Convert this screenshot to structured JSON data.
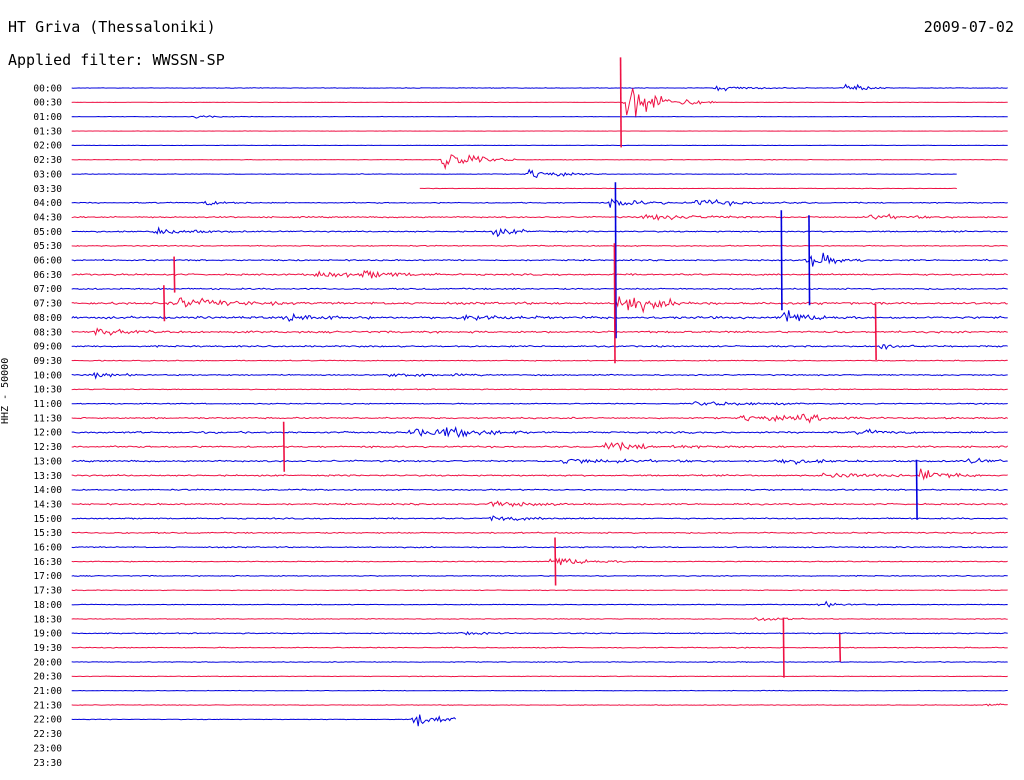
{
  "header": {
    "station": "HT Griva (Thessaloniki)",
    "date": "2009-07-02",
    "filter": "Applied filter: WWSSN-SP"
  },
  "chart_data": {
    "type": "line",
    "title": "HT Griva (Thessaloniki)",
    "subtitle": "Applied filter: WWSSN-SP",
    "ylabel": "HHZ - 50000",
    "xlabel": "",
    "grid": false,
    "colors": [
      "#0000dd",
      "#ee1144"
    ],
    "rows": [
      "00:00",
      "00:30",
      "01:00",
      "01:30",
      "02:00",
      "02:30",
      "03:00",
      "03:30",
      "04:00",
      "04:30",
      "05:00",
      "05:30",
      "06:00",
      "06:30",
      "07:00",
      "07:30",
      "08:00",
      "08:30",
      "09:00",
      "09:30",
      "10:00",
      "10:30",
      "11:00",
      "11:30",
      "12:00",
      "12:30",
      "13:00",
      "13:30",
      "14:00",
      "14:30",
      "15:00",
      "15:30",
      "16:00",
      "16:30",
      "17:00",
      "17:30",
      "18:00",
      "18:30",
      "19:00",
      "19:30",
      "20:00",
      "20:30",
      "21:00",
      "21:30",
      "22:00",
      "22:30",
      "23:00",
      "23:30"
    ],
    "row_noise": [
      0.35,
      0.2,
      0.3,
      0.15,
      0.2,
      0.4,
      0.4,
      0.3,
      0.7,
      0.9,
      0.9,
      0.7,
      0.9,
      1.1,
      1.0,
      1.5,
      1.5,
      1.3,
      1.0,
      0.6,
      0.8,
      0.6,
      0.7,
      1.0,
      1.2,
      1.1,
      1.1,
      1.0,
      0.9,
      1.0,
      0.9,
      0.9,
      0.8,
      0.6,
      0.6,
      0.5,
      0.5,
      0.5,
      0.7,
      0.6,
      0.5,
      0.4,
      0.4,
      0.4,
      0.4,
      0,
      0,
      0
    ],
    "row_extent": [
      [
        0.07,
        0.985
      ],
      [
        0.07,
        0.985
      ],
      [
        0.07,
        0.985
      ],
      [
        0.07,
        0.985
      ],
      [
        0.07,
        0.985
      ],
      [
        0.07,
        0.985
      ],
      [
        0.07,
        0.935
      ],
      [
        0.41,
        0.935
      ],
      [
        0.07,
        0.985
      ],
      [
        0.07,
        0.985
      ],
      [
        0.07,
        0.985
      ],
      [
        0.07,
        0.985
      ],
      [
        0.07,
        0.985
      ],
      [
        0.07,
        0.985
      ],
      [
        0.07,
        0.985
      ],
      [
        0.07,
        0.985
      ],
      [
        0.07,
        0.985
      ],
      [
        0.07,
        0.985
      ],
      [
        0.07,
        0.985
      ],
      [
        0.07,
        0.985
      ],
      [
        0.07,
        0.985
      ],
      [
        0.07,
        0.985
      ],
      [
        0.07,
        0.985
      ],
      [
        0.07,
        0.985
      ],
      [
        0.07,
        0.985
      ],
      [
        0.07,
        0.985
      ],
      [
        0.07,
        0.985
      ],
      [
        0.07,
        0.985
      ],
      [
        0.07,
        0.985
      ],
      [
        0.07,
        0.985
      ],
      [
        0.07,
        0.985
      ],
      [
        0.07,
        0.985
      ],
      [
        0.07,
        0.985
      ],
      [
        0.07,
        0.985
      ],
      [
        0.07,
        0.985
      ],
      [
        0.07,
        0.985
      ],
      [
        0.07,
        0.985
      ],
      [
        0.07,
        0.985
      ],
      [
        0.07,
        0.985
      ],
      [
        0.07,
        0.985
      ],
      [
        0.07,
        0.985
      ],
      [
        0.07,
        0.985
      ],
      [
        0.07,
        0.985
      ],
      [
        0.07,
        0.985
      ],
      [
        0.07,
        0.445
      ],
      [
        0,
        0
      ],
      [
        0,
        0
      ],
      [
        0,
        0
      ]
    ],
    "events": [
      {
        "row": 0,
        "t": 0.7,
        "amp": 4,
        "dur": 0.03
      },
      {
        "row": 0,
        "t": 0.825,
        "amp": 9,
        "dur": 0.015
      },
      {
        "row": 1,
        "t": 0.612,
        "amp": 28,
        "dur": 0.03
      },
      {
        "row": 2,
        "t": 0.19,
        "amp": 2,
        "dur": 0.02
      },
      {
        "row": 5,
        "t": 0.43,
        "amp": 20,
        "dur": 0.025
      },
      {
        "row": 5,
        "t": 0.995,
        "amp": 4,
        "dur": 0.03
      },
      {
        "row": 6,
        "t": 0.517,
        "amp": 9,
        "dur": 0.02
      },
      {
        "row": 8,
        "t": 0.2,
        "amp": 3,
        "dur": 0.02
      },
      {
        "row": 8,
        "t": 0.597,
        "amp": 6,
        "dur": 0.03
      },
      {
        "row": 8,
        "t": 0.68,
        "amp": 5,
        "dur": 0.04
      },
      {
        "row": 9,
        "t": 0.63,
        "amp": 4,
        "dur": 0.05
      },
      {
        "row": 9,
        "t": 0.85,
        "amp": 4,
        "dur": 0.03
      },
      {
        "row": 10,
        "t": 0.15,
        "amp": 5,
        "dur": 0.03
      },
      {
        "row": 10,
        "t": 0.48,
        "amp": 7,
        "dur": 0.02
      },
      {
        "row": 12,
        "t": 0.79,
        "amp": 14,
        "dur": 0.02
      },
      {
        "row": 13,
        "t": 0.31,
        "amp": 5,
        "dur": 0.04
      },
      {
        "row": 13,
        "t": 0.355,
        "amp": 4,
        "dur": 0.03
      },
      {
        "row": 15,
        "t": 0.17,
        "amp": 8,
        "dur": 0.04
      },
      {
        "row": 15,
        "t": 0.605,
        "amp": 16,
        "dur": 0.03
      },
      {
        "row": 16,
        "t": 0.28,
        "amp": 5,
        "dur": 0.03
      },
      {
        "row": 16,
        "t": 0.448,
        "amp": 5,
        "dur": 0.03
      },
      {
        "row": 16,
        "t": 0.765,
        "amp": 12,
        "dur": 0.02
      },
      {
        "row": 17,
        "t": 0.095,
        "amp": 6,
        "dur": 0.02
      },
      {
        "row": 18,
        "t": 0.86,
        "amp": 4,
        "dur": 0.02
      },
      {
        "row": 20,
        "t": 0.09,
        "amp": 4,
        "dur": 0.02
      },
      {
        "row": 20,
        "t": 0.38,
        "amp": 3,
        "dur": 0.05
      },
      {
        "row": 22,
        "t": 0.68,
        "amp": 3,
        "dur": 0.06
      },
      {
        "row": 23,
        "t": 0.725,
        "amp": 5,
        "dur": 0.04
      },
      {
        "row": 23,
        "t": 0.78,
        "amp": 4,
        "dur": 0.03
      },
      {
        "row": 24,
        "t": 0.4,
        "amp": 5,
        "dur": 0.05
      },
      {
        "row": 24,
        "t": 0.435,
        "amp": 5,
        "dur": 0.03
      },
      {
        "row": 24,
        "t": 0.84,
        "amp": 4,
        "dur": 0.02
      },
      {
        "row": 25,
        "t": 0.59,
        "amp": 5,
        "dur": 0.05
      },
      {
        "row": 26,
        "t": 0.55,
        "amp": 4,
        "dur": 0.05
      },
      {
        "row": 26,
        "t": 0.755,
        "amp": 5,
        "dur": 0.03
      },
      {
        "row": 26,
        "t": 0.945,
        "amp": 4,
        "dur": 0.02
      },
      {
        "row": 27,
        "t": 0.8,
        "amp": 4,
        "dur": 0.04
      },
      {
        "row": 27,
        "t": 0.9,
        "amp": 12,
        "dur": 0.02
      },
      {
        "row": 29,
        "t": 0.48,
        "amp": 5,
        "dur": 0.03
      },
      {
        "row": 30,
        "t": 0.48,
        "amp": 4,
        "dur": 0.03
      },
      {
        "row": 33,
        "t": 0.54,
        "amp": 9,
        "dur": 0.025
      },
      {
        "row": 36,
        "t": 0.8,
        "amp": 4,
        "dur": 0.02
      },
      {
        "row": 37,
        "t": 0.74,
        "amp": 4,
        "dur": 0.02
      },
      {
        "row": 38,
        "t": 0.45,
        "amp": 3,
        "dur": 0.02
      },
      {
        "row": 43,
        "t": 0.965,
        "amp": 4,
        "dur": 0.02
      },
      {
        "row": 44,
        "t": 0.406,
        "amp": 14,
        "dur": 0.02
      }
    ],
    "spikes": [
      {
        "row": 1,
        "t": 0.606,
        "amp": 45
      },
      {
        "row": 12,
        "t": 0.601,
        "amp": 78
      },
      {
        "row": 12,
        "t": 0.79,
        "amp": 45
      },
      {
        "row": 12,
        "t": 0.763,
        "amp": 50
      },
      {
        "row": 15,
        "t": 0.6,
        "amp": 60
      },
      {
        "row": 17,
        "t": 0.855,
        "amp": 28
      },
      {
        "row": 28,
        "t": 0.895,
        "amp": 30
      },
      {
        "row": 25,
        "t": 0.277,
        "amp": 25
      },
      {
        "row": 33,
        "t": 0.542,
        "amp": 24
      },
      {
        "row": 39,
        "t": 0.765,
        "amp": 30
      },
      {
        "row": 39,
        "t": 0.82,
        "amp": 14
      },
      {
        "row": 13,
        "t": 0.17,
        "amp": 18
      },
      {
        "row": 15,
        "t": 0.16,
        "amp": 18
      }
    ]
  }
}
